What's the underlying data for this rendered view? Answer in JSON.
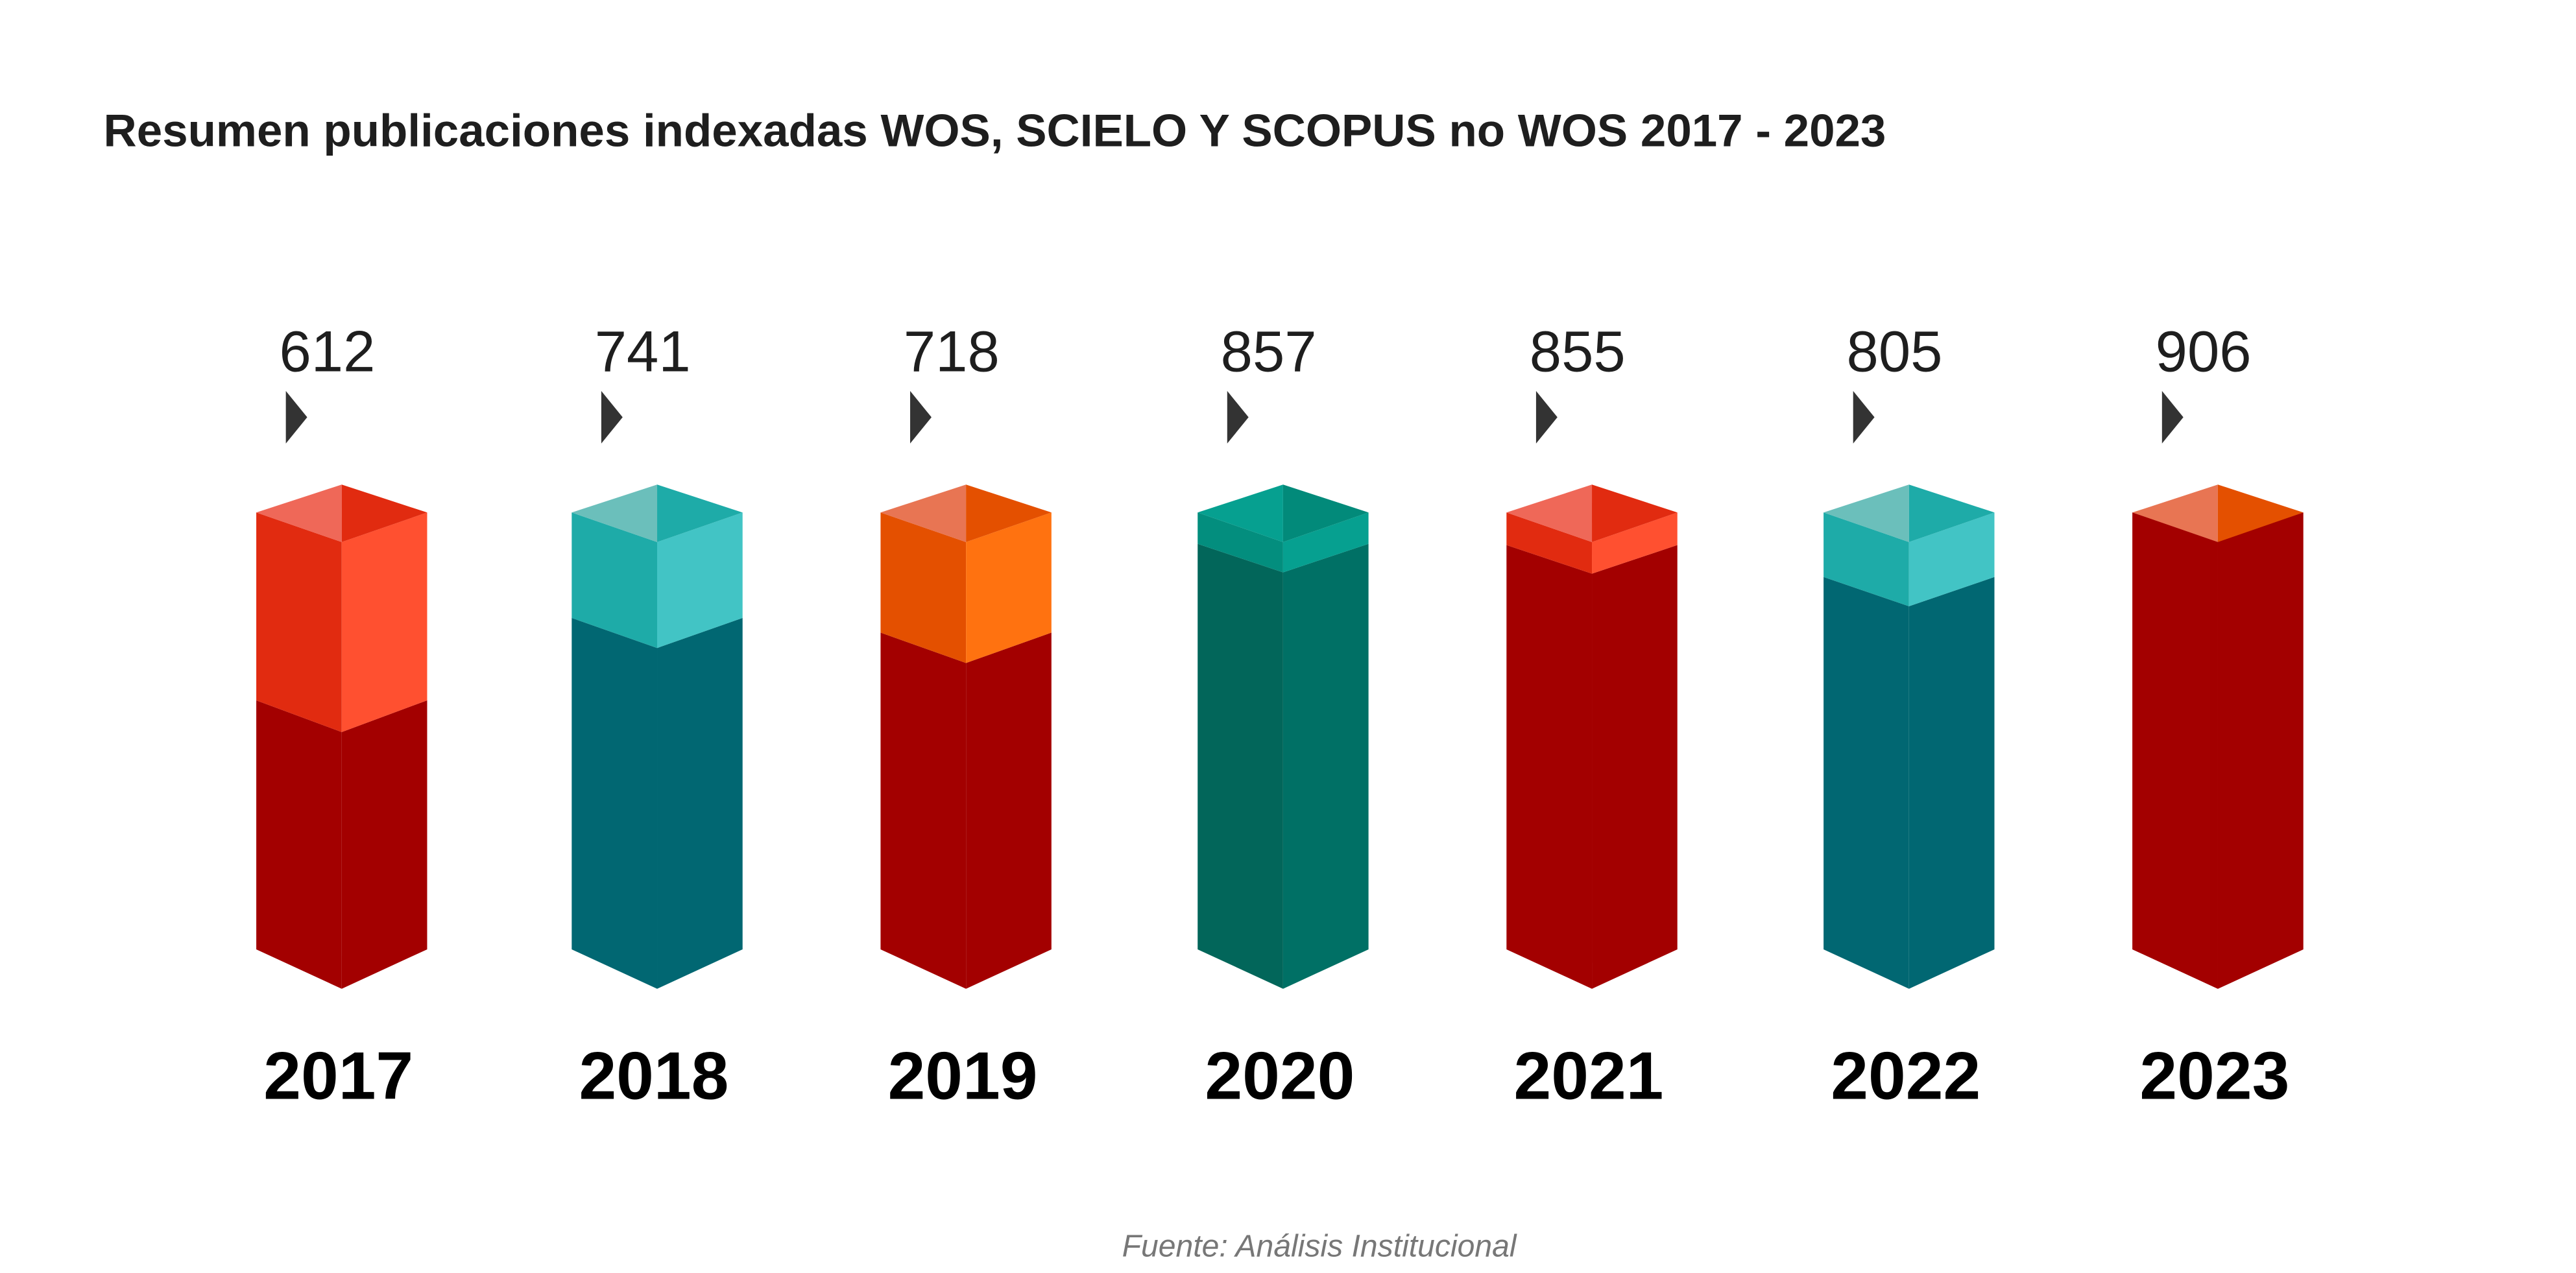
{
  "chart_data": {
    "type": "bar",
    "title": "Resumen publicaciones indexadas WOS, SCIELO Y SCOPUS no WOS 2017 - 2023",
    "categories": [
      "2017",
      "2018",
      "2019",
      "2020",
      "2021",
      "2022",
      "2023"
    ],
    "values": [
      612,
      741,
      718,
      857,
      855,
      805,
      906
    ],
    "value_labels": [
      "612",
      "741",
      "718",
      "857",
      "855",
      "805",
      "906"
    ],
    "source": "Fuente: Análisis Institucional",
    "style": "3d-isometric-columns",
    "bar_color_schemes": [
      "red",
      "teal",
      "orange",
      "green",
      "red",
      "teal",
      "orange"
    ],
    "colors": {
      "red": {
        "bottom": "#a30000",
        "bottom_right": "#a30000",
        "top_left": "#e12b10",
        "top_right": "#ff5030",
        "cap_left": "#ef6858",
        "cap_right": "#e12b10"
      },
      "teal": {
        "bottom": "#016772",
        "bottom_right": "#016772",
        "top_left": "#1eaba8",
        "top_right": "#42c4c5",
        "cap_left": "#6bbfbb",
        "cap_right": "#1eaba8"
      },
      "orange": {
        "bottom": "#a30000",
        "bottom_right": "#a30000",
        "top_left": "#e45000",
        "top_right": "#ff7210",
        "cap_left": "#e87553",
        "cap_right": "#e45000"
      },
      "green": {
        "bottom": "#02665a",
        "bottom_right": "#007065",
        "top_left": "#038e7e",
        "top_right": "#06a090",
        "cap_left": "#06a090",
        "cap_right": "#028a7a"
      }
    },
    "marker_color": "#333333"
  }
}
